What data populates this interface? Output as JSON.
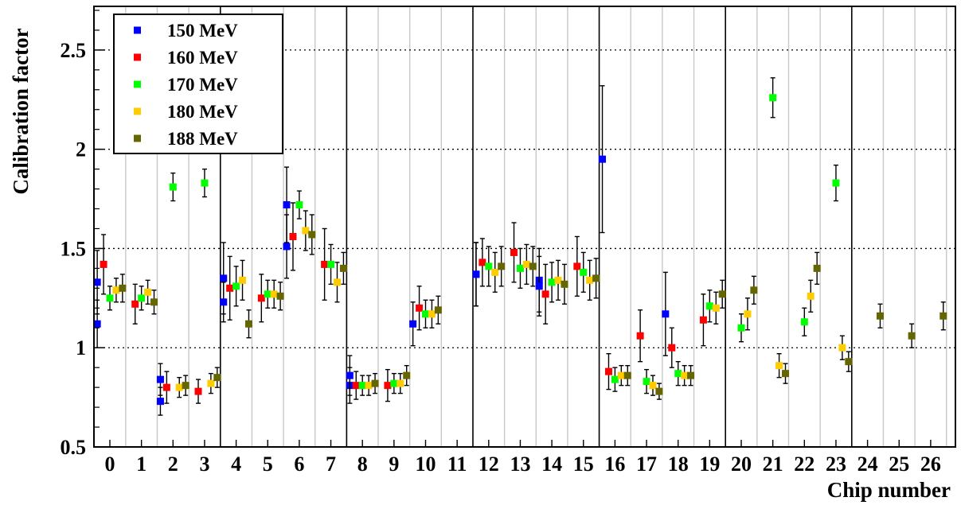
{
  "chart_data": {
    "type": "scatter",
    "xlabel": "Chip number",
    "ylabel": "Calibration factor",
    "ylim": [
      0.5,
      2.72
    ],
    "yticks": [
      "0.5",
      "1",
      "1.5",
      "2",
      "2.5"
    ],
    "categories": [
      "0",
      "1",
      "2",
      "3",
      "4",
      "5",
      "6",
      "7",
      "8",
      "9",
      "10",
      "11",
      "12",
      "13",
      "14",
      "15",
      "16",
      "17",
      "18",
      "19",
      "20",
      "21",
      "22",
      "23",
      "24",
      "25",
      "26"
    ],
    "grid": {
      "horizontal_dotted": true,
      "vertical_light": true
    },
    "legend_position": "top-left",
    "series": [
      {
        "name": "150 MeV",
        "color": "#0000ff",
        "offset": -0.4,
        "points": [
          [
            0,
            1.12,
            0.12
          ],
          [
            0,
            1.33,
            0.16
          ],
          [
            2,
            0.73,
            0.07
          ],
          [
            2,
            0.84,
            0.08
          ],
          [
            4,
            1.35,
            0.18
          ],
          [
            4,
            1.23,
            0.1
          ],
          [
            6,
            1.72,
            0.19
          ],
          [
            6,
            1.51,
            0.16
          ],
          [
            8,
            0.81,
            0.09
          ],
          [
            8,
            0.86,
            0.1
          ],
          [
            10,
            1.12,
            0.11
          ],
          [
            12,
            1.37,
            0.16
          ],
          [
            12,
            1.37,
            0.16
          ],
          [
            14,
            1.34,
            0.16
          ],
          [
            14,
            1.31,
            0.15
          ],
          [
            16,
            1.95,
            0.37
          ],
          [
            18,
            1.17,
            0.21
          ]
        ]
      },
      {
        "name": "160 MeV",
        "color": "#ff0000",
        "offset": -0.2,
        "points": [
          [
            0,
            1.42,
            0.15
          ],
          [
            1,
            1.22,
            0.1
          ],
          [
            2,
            0.8,
            0.08
          ],
          [
            3,
            0.78,
            0.06
          ],
          [
            4,
            1.3,
            0.16
          ],
          [
            5,
            1.25,
            0.12
          ],
          [
            6,
            1.56,
            0.17
          ],
          [
            7,
            1.42,
            0.18
          ],
          [
            8,
            0.81,
            0.07
          ],
          [
            9,
            0.81,
            0.08
          ],
          [
            10,
            1.2,
            0.11
          ],
          [
            12,
            1.43,
            0.12
          ],
          [
            13,
            1.48,
            0.15
          ],
          [
            14,
            1.27,
            0.15
          ],
          [
            15,
            1.41,
            0.15
          ],
          [
            16,
            0.88,
            0.09
          ],
          [
            17,
            1.06,
            0.13
          ],
          [
            18,
            1.0,
            0.1
          ],
          [
            19,
            1.14,
            0.13
          ]
        ]
      },
      {
        "name": "170 MeV",
        "color": "#00ff00",
        "offset": 0.0,
        "points": [
          [
            0,
            1.25,
            0.06
          ],
          [
            1,
            1.25,
            0.06
          ],
          [
            2,
            1.81,
            0.07
          ],
          [
            3,
            1.83,
            0.07
          ],
          [
            4,
            1.31,
            0.1
          ],
          [
            5,
            1.27,
            0.07
          ],
          [
            6,
            1.72,
            0.07
          ],
          [
            7,
            1.42,
            0.1
          ],
          [
            8,
            0.81,
            0.05
          ],
          [
            9,
            0.82,
            0.05
          ],
          [
            10,
            1.17,
            0.07
          ],
          [
            12,
            1.41,
            0.1
          ],
          [
            13,
            1.4,
            0.1
          ],
          [
            14,
            1.33,
            0.1
          ],
          [
            15,
            1.38,
            0.1
          ],
          [
            16,
            0.84,
            0.06
          ],
          [
            17,
            0.83,
            0.06
          ],
          [
            18,
            0.87,
            0.06
          ],
          [
            19,
            1.21,
            0.08
          ],
          [
            20,
            1.1,
            0.07
          ],
          [
            21,
            2.26,
            0.1
          ],
          [
            22,
            1.13,
            0.07
          ],
          [
            23,
            1.83,
            0.09
          ]
        ]
      },
      {
        "name": "180 MeV",
        "color": "#ffcc00",
        "offset": 0.2,
        "points": [
          [
            0,
            1.29,
            0.06
          ],
          [
            1,
            1.28,
            0.06
          ],
          [
            2,
            0.8,
            0.05
          ],
          [
            3,
            0.82,
            0.05
          ],
          [
            4,
            1.34,
            0.1
          ],
          [
            5,
            1.27,
            0.07
          ],
          [
            6,
            1.59,
            0.1
          ],
          [
            7,
            1.33,
            0.1
          ],
          [
            8,
            0.81,
            0.05
          ],
          [
            9,
            0.82,
            0.05
          ],
          [
            10,
            1.17,
            0.07
          ],
          [
            12,
            1.38,
            0.1
          ],
          [
            13,
            1.42,
            0.1
          ],
          [
            14,
            1.34,
            0.1
          ],
          [
            15,
            1.34,
            0.1
          ],
          [
            16,
            0.86,
            0.05
          ],
          [
            17,
            0.81,
            0.05
          ],
          [
            18,
            0.86,
            0.05
          ],
          [
            19,
            1.2,
            0.08
          ],
          [
            20,
            1.17,
            0.08
          ],
          [
            21,
            0.91,
            0.06
          ],
          [
            22,
            1.26,
            0.08
          ],
          [
            23,
            1.0,
            0.06
          ]
        ]
      },
      {
        "name": "188 MeV",
        "color": "#666600",
        "offset": 0.4,
        "points": [
          [
            0,
            1.3,
            0.07
          ],
          [
            1,
            1.23,
            0.06
          ],
          [
            2,
            0.81,
            0.05
          ],
          [
            3,
            0.85,
            0.05
          ],
          [
            4,
            1.12,
            0.07
          ],
          [
            5,
            1.26,
            0.07
          ],
          [
            6,
            1.57,
            0.1
          ],
          [
            7,
            1.4,
            0.08
          ],
          [
            8,
            0.82,
            0.05
          ],
          [
            9,
            0.86,
            0.05
          ],
          [
            10,
            1.19,
            0.07
          ],
          [
            12,
            1.41,
            0.1
          ],
          [
            13,
            1.41,
            0.1
          ],
          [
            14,
            1.32,
            0.1
          ],
          [
            15,
            1.35,
            0.1
          ],
          [
            16,
            0.86,
            0.05
          ],
          [
            17,
            0.78,
            0.04
          ],
          [
            18,
            0.86,
            0.05
          ],
          [
            19,
            1.27,
            0.07
          ],
          [
            20,
            1.29,
            0.07
          ],
          [
            21,
            0.87,
            0.05
          ],
          [
            22,
            1.4,
            0.08
          ],
          [
            23,
            0.93,
            0.05
          ],
          [
            24,
            1.16,
            0.06
          ],
          [
            25,
            1.06,
            0.06
          ],
          [
            26,
            1.16,
            0.07
          ]
        ]
      }
    ]
  }
}
